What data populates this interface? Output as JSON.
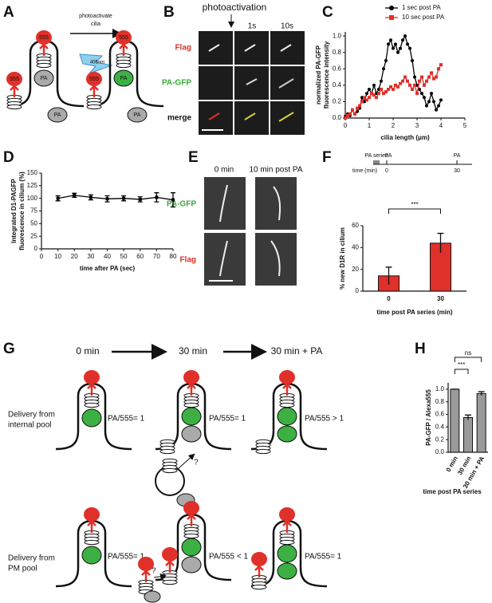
{
  "panel_labels": [
    "A",
    "B",
    "C",
    "D",
    "E",
    "F",
    "G",
    "H"
  ],
  "panel_a": {
    "arrow_label": [
      "photoactivate",
      "cilia"
    ],
    "laser": "405nm",
    "dye": [
      "555",
      "555",
      "555",
      "555"
    ],
    "protein": [
      "PA",
      "PA",
      "PA",
      "PA"
    ]
  },
  "panel_b": {
    "header": "photoactivation",
    "columns": [
      "1s",
      "10s"
    ],
    "rows": [
      "Flag",
      "PA-GFP",
      "merge"
    ]
  },
  "panel_e": {
    "columns": [
      "0 min",
      "10 min post PA"
    ],
    "rows": [
      "PA-GFP",
      "Flag"
    ]
  },
  "panel_f_timeline": {
    "labels": [
      "PA series",
      "PA",
      "PA"
    ],
    "axis_label": "time (min)",
    "ticks": [
      "0",
      "30"
    ]
  },
  "panel_g": {
    "times": [
      "0 min",
      "30 min",
      "30 min + PA"
    ],
    "rows": [
      {
        "label": [
          "Delivery from",
          "internal pool"
        ],
        "ratios": [
          "PA/555= 1",
          "PA/555= 1",
          "PA/555 > 1"
        ],
        "question": "?"
      },
      {
        "label": [
          "Delivery from",
          "PM pool"
        ],
        "ratios": [
          "PA/555= 1",
          "PA/555 < 1",
          "PA/555= 1"
        ],
        "question": "?"
      }
    ]
  },
  "chart_data": [
    {
      "type": "line",
      "xlabel": "cilia length (μm)",
      "ylabel": [
        "normalized PA-GFP",
        "fluorescence intensity"
      ],
      "x": [
        0,
        0.1,
        0.2,
        0.3,
        0.4,
        0.5,
        0.6,
        0.7,
        0.8,
        0.9,
        1,
        1.1,
        1.2,
        1.3,
        1.4,
        1.5,
        1.6,
        1.7,
        1.8,
        1.9,
        2,
        2.1,
        2.2,
        2.3,
        2.4,
        2.5,
        2.6,
        2.7,
        2.8,
        2.9,
        3,
        3.1,
        3.2,
        3.3,
        3.4,
        3.5,
        3.6,
        3.7,
        3.8,
        3.9,
        4
      ],
      "series": [
        {
          "name": "1 sec post PA",
          "color": "#000000",
          "marker": "circle",
          "values": [
            0.02,
            0.05,
            0.03,
            0.1,
            0.05,
            0.08,
            0.12,
            0.25,
            0.2,
            0.3,
            0.35,
            0.3,
            0.4,
            0.3,
            0.35,
            0.45,
            0.6,
            0.7,
            0.9,
            0.95,
            0.85,
            0.9,
            0.8,
            0.85,
            0.95,
            1.0,
            0.9,
            0.85,
            0.7,
            0.5,
            0.4,
            0.35,
            0.3,
            0.25,
            0.15,
            0.2,
            0.3,
            0.2,
            0.1,
            0.15,
            0.22
          ]
        },
        {
          "name": "10 sec post PA",
          "color": "#e0302a",
          "marker": "square",
          "values": [
            0.0,
            0.03,
            0.05,
            0.1,
            0.05,
            0.12,
            0.15,
            0.2,
            0.25,
            0.22,
            0.25,
            0.3,
            0.28,
            0.25,
            0.3,
            0.35,
            0.3,
            0.32,
            0.35,
            0.38,
            0.35,
            0.4,
            0.38,
            0.42,
            0.45,
            0.5,
            0.45,
            0.4,
            0.35,
            0.4,
            0.3,
            0.45,
            0.5,
            0.4,
            0.45,
            0.5,
            0.55,
            0.48,
            0.5,
            0.6,
            0.65
          ]
        }
      ],
      "xlim": [
        0,
        5
      ],
      "xticks": [
        0,
        1,
        2,
        3,
        4,
        5
      ],
      "ylim": [
        0,
        1.05
      ],
      "yticks": [
        {
          "value": 0,
          "label": "0.0"
        },
        {
          "value": 0.2,
          "label": "0.2"
        },
        {
          "value": 0.4,
          "label": "0.4"
        },
        {
          "value": 0.6,
          "label": "0.6"
        },
        {
          "value": 0.8,
          "label": "0.8"
        },
        {
          "value": 1,
          "label": "1.0"
        }
      ],
      "legend": "top-right"
    },
    {
      "type": "line",
      "xlabel": "time after PA (sec)",
      "ylabel": [
        "Integrated D1-PAGFP",
        "fluorescence in cilium (%)"
      ],
      "x": [
        10,
        20,
        30,
        40,
        50,
        60,
        70,
        80
      ],
      "series": [
        {
          "color": "#000000",
          "marker": "square",
          "values": [
            100,
            106,
            102,
            99,
            100,
            98,
            102,
            97
          ],
          "errors": [
            5,
            4,
            5,
            6,
            5,
            5,
            9,
            14
          ]
        }
      ],
      "xlim": [
        0,
        80
      ],
      "xticks": [
        0,
        10,
        20,
        30,
        40,
        50,
        60,
        70,
        80
      ],
      "ylim": [
        0,
        150
      ],
      "yticks": [
        0,
        25,
        50,
        75,
        100,
        125,
        150
      ]
    },
    {
      "type": "bar",
      "xlabel": "time post PA series (min)",
      "ylabel": [
        "% new D1R in cilium"
      ],
      "categories": [
        "0",
        "30"
      ],
      "values": [
        14,
        44
      ],
      "errors": [
        8,
        9
      ],
      "color": "#e0302a",
      "ylim": [
        0,
        60
      ],
      "yticks": [
        0,
        20,
        40,
        60
      ],
      "annotations": [
        "***"
      ]
    },
    {
      "type": "bar",
      "xlabel": "time post PA series",
      "ylabel": [
        "PA-GFP / Alexa555"
      ],
      "categories": [
        "0 min",
        "30 min",
        "30 min + PA"
      ],
      "values": [
        1.0,
        0.55,
        0.93
      ],
      "errors": [
        0,
        0.04,
        0.03
      ],
      "color": "#9a9a9a",
      "ylim": [
        0,
        1.1
      ],
      "yticks": [
        {
          "value": 0,
          "label": "0.0"
        },
        {
          "value": 0.2,
          "label": "0.2"
        },
        {
          "value": 0.4,
          "label": "0.4"
        },
        {
          "value": 0.6,
          "label": "0.6"
        },
        {
          "value": 0.8,
          "label": "0.8"
        },
        {
          "value": 1,
          "label": "1.0"
        }
      ],
      "annotations": [
        "***",
        "ns"
      ]
    }
  ]
}
